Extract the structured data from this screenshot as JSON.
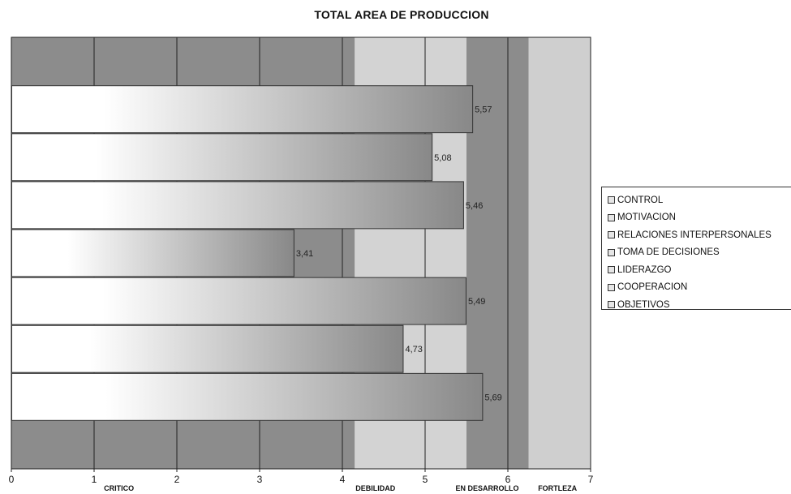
{
  "chart_data": {
    "type": "bar",
    "orientation": "horizontal",
    "title": "TOTAL AREA DE PRODUCCION",
    "categories": [
      "CONTROL",
      "MOTIVACION",
      "RELACIONES INTERPERSONALES",
      "TOMA DE DECISIONES",
      "LIDERAZGO",
      "COOPERACION",
      "OBJETIVOS"
    ],
    "values": [
      5.57,
      5.08,
      5.46,
      3.41,
      5.49,
      4.73,
      5.69
    ],
    "data_labels": [
      "5,57",
      "5,08",
      "5,46",
      "3,41",
      "5,49",
      "4,73",
      "5,69"
    ],
    "xlim": [
      0,
      7
    ],
    "x_ticks": [
      "0",
      "1",
      "2",
      "3",
      "4",
      "5",
      "6",
      "7"
    ],
    "zones": [
      {
        "label": "CRITICO",
        "start": 0,
        "end": 4.15,
        "color": "#8c8c8c"
      },
      {
        "label": "DEBILIDAD",
        "start": 4.15,
        "end": 5.5,
        "color": "#d3d3d3"
      },
      {
        "label": "EN DESARROLLO",
        "start": 5.5,
        "end": 6.25,
        "color": "#8c8c8c"
      },
      {
        "label": "FORTLEZA",
        "start": 6.25,
        "end": 7,
        "color": "#cfcfcf"
      }
    ],
    "legend": {
      "placement": "right",
      "entries": [
        "CONTROL",
        "MOTIVACION",
        "RELACIONES INTERPERSONALES",
        "TOMA DE DECISIONES",
        "LIDERAZGO",
        "COOPERACION",
        "OBJETIVOS"
      ]
    },
    "grid": true
  }
}
